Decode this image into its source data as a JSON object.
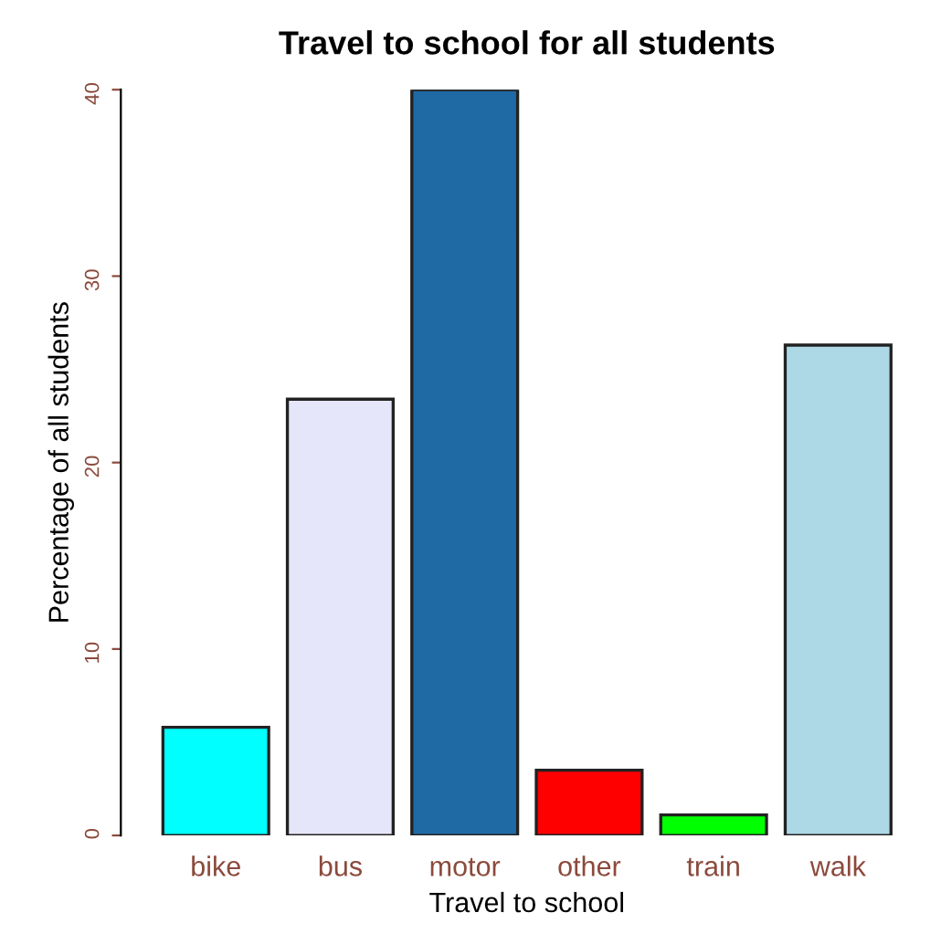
{
  "chart_data": {
    "type": "bar",
    "title": "Travel to school for all students",
    "xlabel": "Travel to school",
    "ylabel": "Percentage of all students",
    "categories": [
      "bike",
      "bus",
      "motor",
      "other",
      "train",
      "walk"
    ],
    "values": [
      5.8,
      23.4,
      40,
      3.5,
      1.1,
      26.3
    ],
    "colors": [
      "#00ffff",
      "#e6e6fa",
      "#1f6aa5",
      "#ff0000",
      "#00ff00",
      "#add8e6"
    ],
    "ylim": [
      0,
      40
    ],
    "yticks": [
      0,
      10,
      20,
      30,
      40
    ],
    "grid": false
  }
}
